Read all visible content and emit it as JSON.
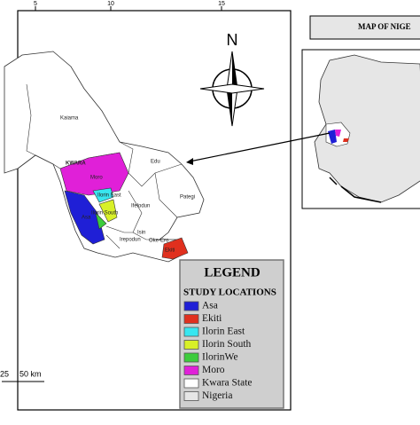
{
  "frame_ticks": [
    "5",
    "10",
    "15"
  ],
  "north_label": "N",
  "map_labels": {
    "kaiama": "Kaiama",
    "kwara": "KWARA",
    "moro": "Moro",
    "ilorin_east": "Ilorin East",
    "ilorin_south": "Ilorin South",
    "asa": "Asa",
    "ifelodun": "Ifelodun",
    "edu": "Edu",
    "pategi": "Pategi",
    "isin": "Isin",
    "irepodun": "Irepodun",
    "oke_ero": "Oke-Ero",
    "ekiti": "Ekiti"
  },
  "scale_labels": [
    "25",
    "50 km"
  ],
  "inset_title": "MAP OF NIGE",
  "legend": {
    "title": "LEGEND",
    "subtitle": "STUDY LOCATIONS",
    "items": [
      {
        "label": "Asa",
        "color": "#1f1fd6"
      },
      {
        "label": "Ekiti",
        "color": "#e0301e"
      },
      {
        "label": "Ilorin East",
        "color": "#38e6f0"
      },
      {
        "label": "Ilorin South",
        "color": "#d8f028"
      },
      {
        "label": "IlorinWe",
        "color": "#3ccc3c"
      },
      {
        "label": "Moro",
        "color": "#e020d8"
      },
      {
        "label": "Kwara State",
        "color": "#ffffff"
      },
      {
        "label": "Nigeria",
        "color": "#e6e6e6"
      }
    ]
  }
}
